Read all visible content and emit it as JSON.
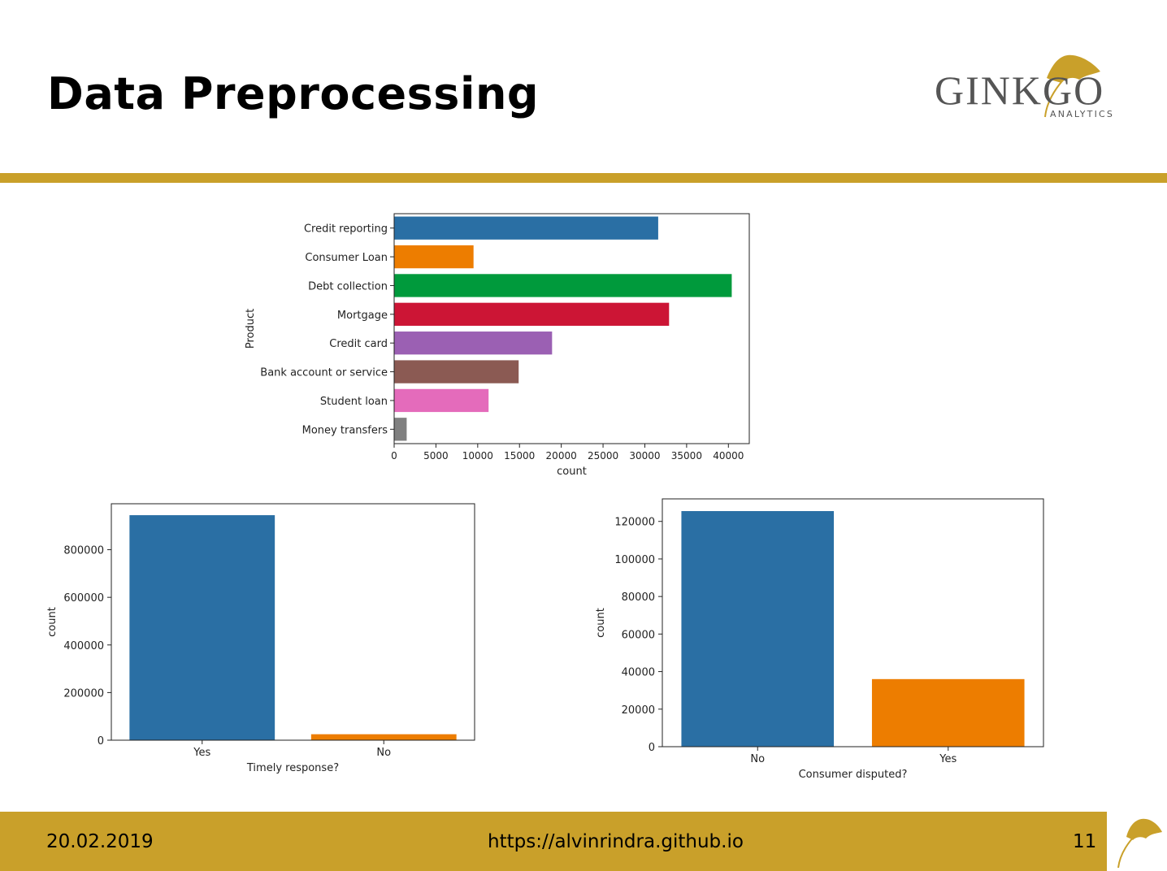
{
  "slide": {
    "title": "Data Preprocessing",
    "logo_text": "GINKGO",
    "logo_subtext": "ANALYTICS"
  },
  "footer": {
    "date": "20.02.2019",
    "url": "https://alvinrindra.github.io",
    "page_number": "11"
  },
  "colors": {
    "gold": "#c9a02a",
    "blue": "#2a6fa4",
    "orange": "#ed7d00",
    "green": "#009a3c",
    "red": "#cc1535",
    "purple": "#9b60b3",
    "brown": "#8b5a53",
    "pink": "#e46bbb",
    "gray": "#808080"
  },
  "chart_data": [
    {
      "id": "product",
      "type": "bar",
      "orientation": "horizontal",
      "categories": [
        "Credit reporting",
        "Consumer Loan",
        "Debt collection",
        "Mortgage",
        "Credit card",
        "Bank account or service",
        "Student loan",
        "Money transfers"
      ],
      "values": [
        31600,
        9500,
        40400,
        32900,
        18900,
        14900,
        11300,
        1500
      ],
      "bar_colors": [
        "#2a6fa4",
        "#ed7d00",
        "#009a3c",
        "#cc1535",
        "#9b60b3",
        "#8b5a53",
        "#e46bbb",
        "#808080"
      ],
      "xlabel": "count",
      "ylabel": "Product",
      "xlim": [
        0,
        42500
      ],
      "xticks": [
        0,
        5000,
        10000,
        15000,
        20000,
        25000,
        30000,
        35000,
        40000
      ],
      "grid": false
    },
    {
      "id": "timely",
      "type": "bar",
      "categories": [
        "Yes",
        "No"
      ],
      "values": [
        945000,
        25000
      ],
      "bar_colors": [
        "#2a6fa4",
        "#ed7d00"
      ],
      "xlabel": "Timely response?",
      "ylabel": "count",
      "ylim": [
        0,
        993000
      ],
      "yticks": [
        0,
        200000,
        400000,
        600000,
        800000
      ],
      "grid": false
    },
    {
      "id": "disputed",
      "type": "bar",
      "categories": [
        "No",
        "Yes"
      ],
      "values": [
        125500,
        36000
      ],
      "bar_colors": [
        "#2a6fa4",
        "#ed7d00"
      ],
      "xlabel": "Consumer disputed?",
      "ylabel": "count",
      "ylim": [
        0,
        132000
      ],
      "yticks": [
        0,
        20000,
        40000,
        60000,
        80000,
        100000,
        120000
      ],
      "grid": false
    }
  ]
}
